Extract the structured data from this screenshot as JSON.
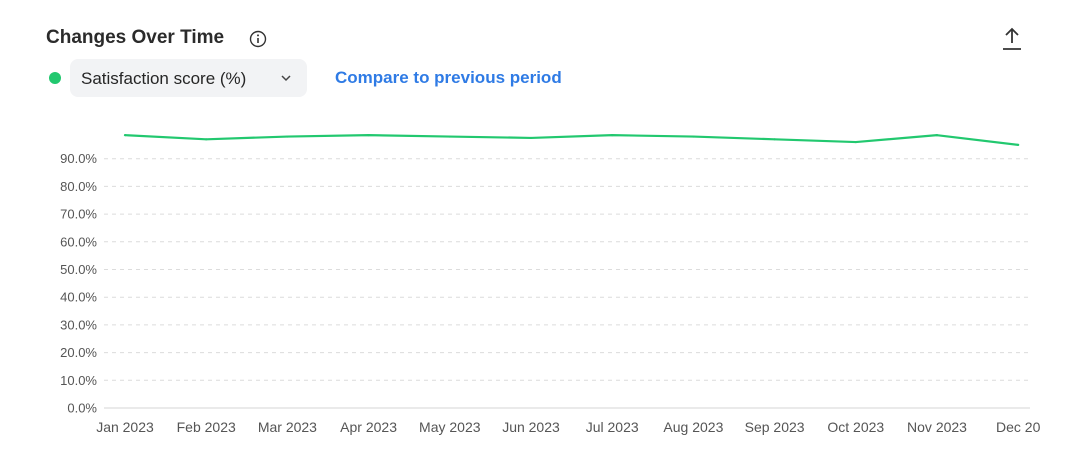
{
  "header": {
    "title": "Changes Over Time",
    "info_icon": "info-circle-icon",
    "export_icon": "upload-icon"
  },
  "controls": {
    "metric_select_value": "Satisfaction score (%)",
    "series_color": "#22c86f",
    "compare_link": "Compare to previous period",
    "compare_link_color": "#2f7be5"
  },
  "chart_data": {
    "type": "line",
    "title": "",
    "xlabel": "",
    "ylabel": "",
    "ylim": [
      0,
      100
    ],
    "y_ticks": [
      "0.0%",
      "10.0%",
      "20.0%",
      "30.0%",
      "40.0%",
      "50.0%",
      "60.0%",
      "70.0%",
      "80.0%",
      "90.0%"
    ],
    "categories": [
      "Jan 2023",
      "Feb 2023",
      "Mar 2023",
      "Apr 2023",
      "May 2023",
      "Jun 2023",
      "Jul 2023",
      "Aug 2023",
      "Sep 2023",
      "Oct 2023",
      "Nov 2023",
      "Dec 20"
    ],
    "series": [
      {
        "values": [
          98.5,
          97.0,
          98.0,
          98.5,
          98.0,
          97.5,
          98.5,
          98.0,
          97.0,
          96.0,
          98.5,
          95.0
        ]
      }
    ],
    "grid": true,
    "legend": "none"
  }
}
